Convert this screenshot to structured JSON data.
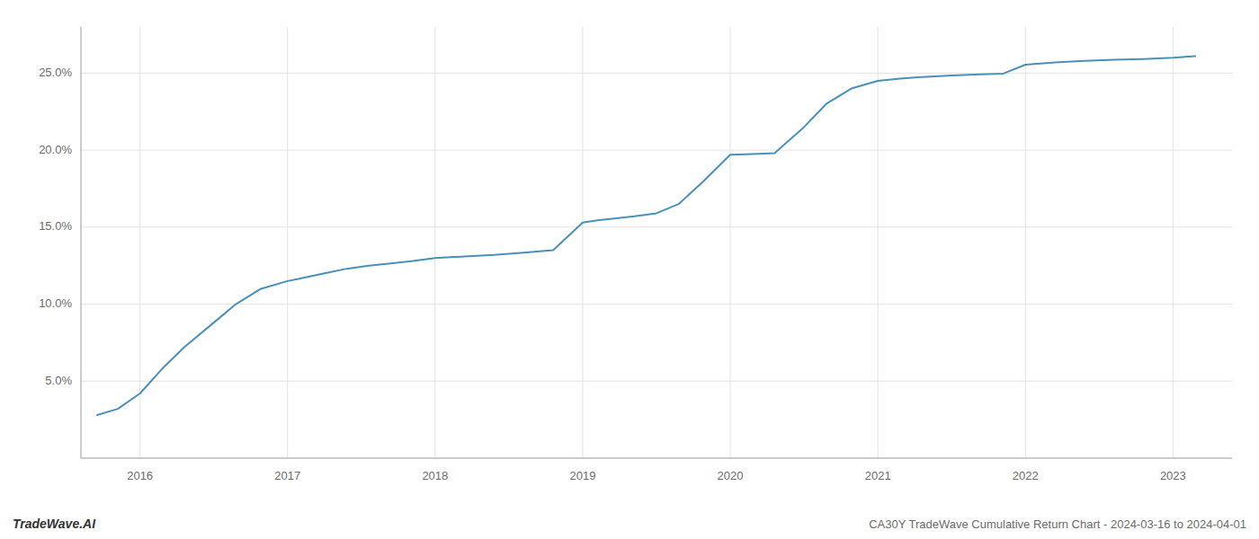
{
  "chart_data": {
    "type": "line",
    "title": "CA30Y TradeWave Cumulative Return Chart - 2024-03-16 to 2024-04-01",
    "annotations": [
      "TradeWave.AI"
    ],
    "color": "#4a90b8",
    "grid": true,
    "x": [
      2015.71,
      2015.85,
      2016.0,
      2016.15,
      2016.3,
      2016.5,
      2016.65,
      2016.82,
      2017.0,
      2017.08,
      2017.15,
      2017.25,
      2017.4,
      2017.55,
      2017.7,
      2017.85,
      2018.0,
      2018.2,
      2018.4,
      2018.6,
      2018.8,
      2019.0,
      2019.1,
      2019.2,
      2019.35,
      2019.5,
      2019.65,
      2019.82,
      2020.0,
      2020.15,
      2020.3,
      2020.5,
      2020.65,
      2020.82,
      2021.0,
      2021.15,
      2021.3,
      2021.5,
      2021.7,
      2021.85,
      2022.0,
      2022.2,
      2022.4,
      2022.6,
      2022.8,
      2023.0,
      2023.15
    ],
    "values": [
      2.8,
      3.2,
      4.2,
      5.8,
      7.2,
      8.8,
      10.0,
      11.0,
      11.5,
      11.65,
      11.8,
      12.0,
      12.3,
      12.5,
      12.65,
      12.8,
      13.0,
      13.1,
      13.2,
      13.35,
      13.5,
      15.3,
      15.45,
      15.55,
      15.7,
      15.9,
      16.5,
      18.0,
      19.7,
      19.75,
      19.8,
      21.5,
      23.0,
      24.0,
      24.5,
      24.65,
      24.75,
      24.85,
      24.92,
      24.97,
      25.55,
      25.7,
      25.8,
      25.87,
      25.92,
      26.0,
      26.1
    ],
    "xlim": [
      2015.6,
      2023.4
    ],
    "ylim": [
      0.0,
      28.0
    ],
    "xticks": [
      2016,
      2017,
      2018,
      2019,
      2020,
      2021,
      2022,
      2023
    ],
    "yticks": [
      {
        "value": 5.0,
        "label": "5.0%"
      },
      {
        "value": 10.0,
        "label": "10.0%"
      },
      {
        "value": 15.0,
        "label": "15.0%"
      },
      {
        "value": 20.0,
        "label": "20.0%"
      },
      {
        "value": 25.0,
        "label": "25.0%"
      }
    ]
  }
}
